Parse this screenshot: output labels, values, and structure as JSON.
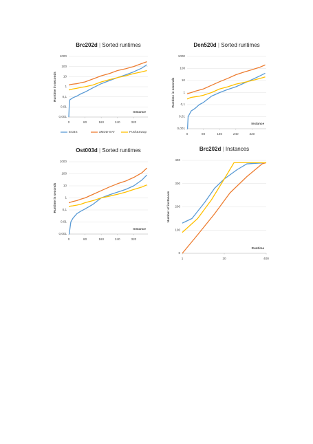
{
  "chart_data": [
    {
      "type": "line",
      "title": "Brc202d",
      "subtitle": "Sorted runtimes",
      "xlabel": "Instance",
      "ylabel": "Runtime in seconds",
      "log_y": true,
      "legend": "bottom",
      "grid": true,
      "x": [
        0,
        2,
        5,
        20,
        40,
        60,
        80,
        120,
        160,
        200,
        240,
        280,
        320,
        360,
        385
      ],
      "xlim": [
        0,
        390
      ],
      "xticks": [
        0,
        80,
        160,
        240,
        320
      ],
      "ylim": [
        0.001,
        1000
      ],
      "yticks": [
        {
          "value": 0.001,
          "label": "0,001"
        },
        {
          "value": 0.01,
          "label": "0,01"
        },
        {
          "value": 0.1,
          "label": "0,1"
        },
        1,
        10,
        100,
        1000
      ],
      "series": [
        {
          "name": "ECBS",
          "color": "#5b9bd5",
          "values": [
            0.001,
            0.01,
            0.05,
            0.08,
            0.12,
            0.2,
            0.3,
            0.8,
            2,
            4,
            8,
            15,
            30,
            70,
            150
          ]
        },
        {
          "name": "aMDD-SAT",
          "color": "#ed7d31",
          "values": [
            1.5,
            1.5,
            1.6,
            1.8,
            2,
            2.5,
            3,
            6,
            12,
            20,
            40,
            60,
            100,
            200,
            300
          ]
        },
        {
          "name": "Push&Swap",
          "color": "#ffc000",
          "values": [
            0.5,
            0.5,
            0.5,
            0.6,
            0.7,
            0.85,
            1,
            1.5,
            3,
            5,
            8,
            12,
            20,
            30,
            40
          ]
        }
      ]
    },
    {
      "type": "line",
      "title": "Den520d",
      "subtitle": "Sorted runtimes",
      "xlabel": "Instance",
      "ylabel": "Runtime in seconds",
      "log_y": true,
      "grid": true,
      "x": [
        0,
        2,
        5,
        20,
        40,
        60,
        80,
        120,
        160,
        200,
        240,
        280,
        320,
        360,
        385
      ],
      "xlim": [
        0,
        390
      ],
      "xticks": [
        0,
        80,
        160,
        240,
        320
      ],
      "ylim": [
        0.001,
        1000
      ],
      "yticks": [
        {
          "value": 0.001,
          "label": "0,001"
        },
        {
          "value": 0.01,
          "label": "0,01"
        },
        {
          "value": 0.1,
          "label": "0,1"
        },
        1,
        10,
        100,
        1000
      ],
      "series": [
        {
          "color": "#5b9bd5",
          "values": [
            0.001,
            0.001,
            0.01,
            0.03,
            0.05,
            0.1,
            0.15,
            0.5,
            1,
            1.8,
            3,
            6,
            12,
            25,
            40
          ]
        },
        {
          "color": "#ed7d31",
          "values": [
            0.8,
            0.8,
            0.85,
            1,
            1.3,
            1.6,
            2,
            4,
            8,
            15,
            30,
            50,
            80,
            130,
            200
          ]
        },
        {
          "color": "#ffc000",
          "values": [
            0.3,
            0.3,
            0.32,
            0.4,
            0.45,
            0.5,
            0.6,
            1,
            2,
            3,
            5,
            7,
            10,
            15,
            20
          ]
        }
      ]
    },
    {
      "type": "line",
      "title": "Ost003d",
      "subtitle": "Sorted runtimes",
      "xlabel": "Instance",
      "ylabel": "Runtime in seconds",
      "log_y": true,
      "grid": true,
      "x": [
        0,
        2,
        10,
        20,
        40,
        60,
        80,
        120,
        160,
        200,
        240,
        280,
        320,
        360,
        385
      ],
      "xlim": [
        0,
        390
      ],
      "xticks": [
        0,
        80,
        160,
        240,
        320
      ],
      "ylim": [
        0.001,
        1000
      ],
      "yticks": [
        {
          "value": 0.001,
          "label": "0,001"
        },
        {
          "value": 0.01,
          "label": "0,01"
        },
        {
          "value": 0.1,
          "label": "0,1"
        },
        1,
        10,
        100,
        1000
      ],
      "series": [
        {
          "color": "#5b9bd5",
          "values": [
            0.001,
            0.001,
            0.01,
            0.02,
            0.05,
            0.08,
            0.12,
            0.3,
            1,
            1.8,
            3,
            5,
            10,
            30,
            80
          ]
        },
        {
          "color": "#ed7d31",
          "values": [
            0.4,
            0.4,
            0.45,
            0.5,
            0.6,
            0.8,
            1,
            2,
            4,
            8,
            15,
            25,
            50,
            120,
            300
          ]
        },
        {
          "color": "#ffc000",
          "values": [
            0.2,
            0.2,
            0.21,
            0.22,
            0.25,
            0.3,
            0.4,
            0.6,
            1,
            1.4,
            2,
            3,
            5,
            8,
            12
          ]
        }
      ]
    },
    {
      "type": "line",
      "title": "Brc202d",
      "subtitle": "Instances",
      "xlabel": "Runtime",
      "ylabel": "Number of instances",
      "log_x": true,
      "grid": true,
      "xlim": [
        1,
        400
      ],
      "xticks": [
        1,
        20,
        400
      ],
      "ylim": [
        0,
        400
      ],
      "yticks": [
        0,
        100,
        200,
        300,
        400
      ],
      "series": [
        {
          "color": "#5b9bd5",
          "x": [
            1,
            2,
            5,
            10,
            20,
            50,
            100,
            400
          ],
          "values": [
            130,
            150,
            220,
            280,
            320,
            360,
            385,
            390
          ]
        },
        {
          "color": "#ed7d31",
          "x": [
            1,
            3,
            10,
            30,
            100,
            300,
            400
          ],
          "values": [
            0,
            80,
            170,
            260,
            330,
            385,
            390
          ]
        },
        {
          "color": "#ffc000",
          "x": [
            1,
            3,
            8,
            20,
            40,
            400
          ],
          "values": [
            90,
            150,
            230,
            320,
            390,
            390
          ]
        }
      ]
    }
  ]
}
